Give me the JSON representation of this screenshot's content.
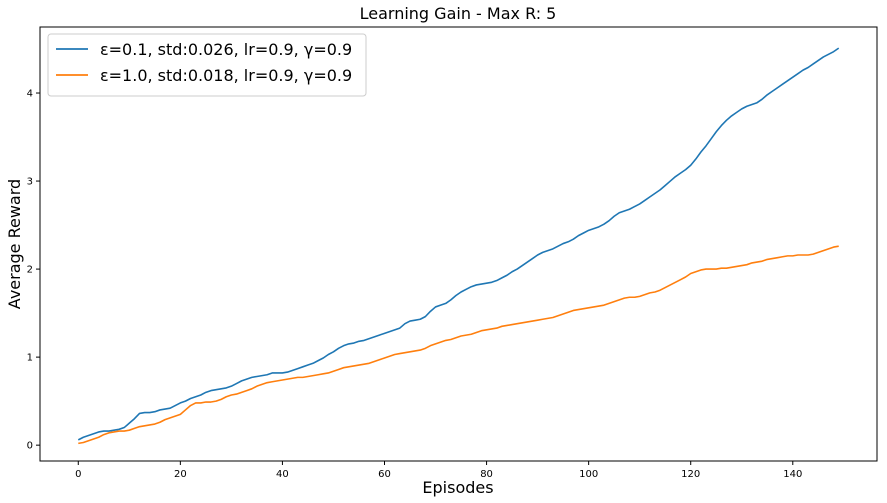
{
  "chart_data": {
    "type": "line",
    "title": "Learning Gain - Max R: 5",
    "xlabel": "Episodes",
    "ylabel": "Average Reward",
    "xlim": [
      -7.5,
      156.5
    ],
    "ylim": [
      -0.18,
      4.75
    ],
    "x_ticks": [
      0,
      20,
      40,
      60,
      80,
      100,
      120,
      140
    ],
    "y_ticks": [
      0,
      1,
      2,
      3,
      4
    ],
    "grid": false,
    "legend_position": "top-left",
    "series": [
      {
        "name": "ε=0.1, std:0.026, lr=0.9, γ=0.9",
        "color": "#1f77b4",
        "points": [
          [
            0,
            0.06
          ],
          [
            1,
            0.09
          ],
          [
            2,
            0.11
          ],
          [
            3,
            0.13
          ],
          [
            4,
            0.15
          ],
          [
            5,
            0.16
          ],
          [
            6,
            0.16
          ],
          [
            7,
            0.17
          ],
          [
            8,
            0.18
          ],
          [
            9,
            0.2
          ],
          [
            10,
            0.25
          ],
          [
            11,
            0.3
          ],
          [
            12,
            0.36
          ],
          [
            13,
            0.37
          ],
          [
            14,
            0.37
          ],
          [
            15,
            0.38
          ],
          [
            16,
            0.4
          ],
          [
            17,
            0.41
          ],
          [
            18,
            0.42
          ],
          [
            19,
            0.45
          ],
          [
            20,
            0.48
          ],
          [
            21,
            0.5
          ],
          [
            22,
            0.53
          ],
          [
            23,
            0.55
          ],
          [
            24,
            0.57
          ],
          [
            25,
            0.6
          ],
          [
            26,
            0.62
          ],
          [
            27,
            0.63
          ],
          [
            28,
            0.64
          ],
          [
            29,
            0.65
          ],
          [
            30,
            0.67
          ],
          [
            31,
            0.7
          ],
          [
            32,
            0.73
          ],
          [
            33,
            0.75
          ],
          [
            34,
            0.77
          ],
          [
            35,
            0.78
          ],
          [
            36,
            0.79
          ],
          [
            37,
            0.8
          ],
          [
            38,
            0.82
          ],
          [
            39,
            0.82
          ],
          [
            40,
            0.82
          ],
          [
            41,
            0.83
          ],
          [
            42,
            0.85
          ],
          [
            43,
            0.87
          ],
          [
            44,
            0.89
          ],
          [
            45,
            0.91
          ],
          [
            46,
            0.93
          ],
          [
            47,
            0.96
          ],
          [
            48,
            0.99
          ],
          [
            49,
            1.03
          ],
          [
            50,
            1.06
          ],
          [
            51,
            1.1
          ],
          [
            52,
            1.13
          ],
          [
            53,
            1.15
          ],
          [
            54,
            1.16
          ],
          [
            55,
            1.18
          ],
          [
            56,
            1.19
          ],
          [
            57,
            1.21
          ],
          [
            58,
            1.23
          ],
          [
            59,
            1.25
          ],
          [
            60,
            1.27
          ],
          [
            61,
            1.29
          ],
          [
            62,
            1.31
          ],
          [
            63,
            1.33
          ],
          [
            64,
            1.38
          ],
          [
            65,
            1.41
          ],
          [
            66,
            1.42
          ],
          [
            67,
            1.43
          ],
          [
            68,
            1.46
          ],
          [
            69,
            1.52
          ],
          [
            70,
            1.57
          ],
          [
            71,
            1.59
          ],
          [
            72,
            1.61
          ],
          [
            73,
            1.65
          ],
          [
            74,
            1.7
          ],
          [
            75,
            1.74
          ],
          [
            76,
            1.77
          ],
          [
            77,
            1.8
          ],
          [
            78,
            1.82
          ],
          [
            79,
            1.83
          ],
          [
            80,
            1.84
          ],
          [
            81,
            1.85
          ],
          [
            82,
            1.87
          ],
          [
            83,
            1.9
          ],
          [
            84,
            1.93
          ],
          [
            85,
            1.97
          ],
          [
            86,
            2.0
          ],
          [
            87,
            2.04
          ],
          [
            88,
            2.08
          ],
          [
            89,
            2.12
          ],
          [
            90,
            2.16
          ],
          [
            91,
            2.19
          ],
          [
            92,
            2.21
          ],
          [
            93,
            2.23
          ],
          [
            94,
            2.26
          ],
          [
            95,
            2.29
          ],
          [
            96,
            2.31
          ],
          [
            97,
            2.34
          ],
          [
            98,
            2.38
          ],
          [
            99,
            2.41
          ],
          [
            100,
            2.44
          ],
          [
            101,
            2.46
          ],
          [
            102,
            2.48
          ],
          [
            103,
            2.51
          ],
          [
            104,
            2.55
          ],
          [
            105,
            2.6
          ],
          [
            106,
            2.64
          ],
          [
            107,
            2.66
          ],
          [
            108,
            2.68
          ],
          [
            109,
            2.71
          ],
          [
            110,
            2.74
          ],
          [
            111,
            2.78
          ],
          [
            112,
            2.82
          ],
          [
            113,
            2.86
          ],
          [
            114,
            2.9
          ],
          [
            115,
            2.95
          ],
          [
            116,
            3.0
          ],
          [
            117,
            3.05
          ],
          [
            118,
            3.09
          ],
          [
            119,
            3.13
          ],
          [
            120,
            3.18
          ],
          [
            121,
            3.25
          ],
          [
            122,
            3.33
          ],
          [
            123,
            3.4
          ],
          [
            124,
            3.48
          ],
          [
            125,
            3.56
          ],
          [
            126,
            3.63
          ],
          [
            127,
            3.69
          ],
          [
            128,
            3.74
          ],
          [
            129,
            3.78
          ],
          [
            130,
            3.82
          ],
          [
            131,
            3.85
          ],
          [
            132,
            3.87
          ],
          [
            133,
            3.89
          ],
          [
            134,
            3.93
          ],
          [
            135,
            3.98
          ],
          [
            136,
            4.02
          ],
          [
            137,
            4.06
          ],
          [
            138,
            4.1
          ],
          [
            139,
            4.14
          ],
          [
            140,
            4.18
          ],
          [
            141,
            4.22
          ],
          [
            142,
            4.26
          ],
          [
            143,
            4.29
          ],
          [
            144,
            4.33
          ],
          [
            145,
            4.37
          ],
          [
            146,
            4.41
          ],
          [
            147,
            4.44
          ],
          [
            148,
            4.47
          ],
          [
            149,
            4.51
          ]
        ]
      },
      {
        "name": "ε=1.0, std:0.018, lr=0.9, γ=0.9",
        "color": "#ff7f0e",
        "points": [
          [
            0,
            0.02
          ],
          [
            1,
            0.03
          ],
          [
            2,
            0.05
          ],
          [
            3,
            0.07
          ],
          [
            4,
            0.09
          ],
          [
            5,
            0.12
          ],
          [
            6,
            0.14
          ],
          [
            7,
            0.15
          ],
          [
            8,
            0.16
          ],
          [
            9,
            0.16
          ],
          [
            10,
            0.17
          ],
          [
            11,
            0.19
          ],
          [
            12,
            0.21
          ],
          [
            13,
            0.22
          ],
          [
            14,
            0.23
          ],
          [
            15,
            0.24
          ],
          [
            16,
            0.26
          ],
          [
            17,
            0.29
          ],
          [
            18,
            0.31
          ],
          [
            19,
            0.33
          ],
          [
            20,
            0.35
          ],
          [
            21,
            0.4
          ],
          [
            22,
            0.45
          ],
          [
            23,
            0.48
          ],
          [
            24,
            0.48
          ],
          [
            25,
            0.49
          ],
          [
            26,
            0.49
          ],
          [
            27,
            0.5
          ],
          [
            28,
            0.52
          ],
          [
            29,
            0.55
          ],
          [
            30,
            0.57
          ],
          [
            31,
            0.58
          ],
          [
            32,
            0.6
          ],
          [
            33,
            0.62
          ],
          [
            34,
            0.64
          ],
          [
            35,
            0.67
          ],
          [
            36,
            0.69
          ],
          [
            37,
            0.71
          ],
          [
            38,
            0.72
          ],
          [
            39,
            0.73
          ],
          [
            40,
            0.74
          ],
          [
            41,
            0.75
          ],
          [
            42,
            0.76
          ],
          [
            43,
            0.77
          ],
          [
            44,
            0.77
          ],
          [
            45,
            0.78
          ],
          [
            46,
            0.79
          ],
          [
            47,
            0.8
          ],
          [
            48,
            0.81
          ],
          [
            49,
            0.82
          ],
          [
            50,
            0.84
          ],
          [
            51,
            0.86
          ],
          [
            52,
            0.88
          ],
          [
            53,
            0.89
          ],
          [
            54,
            0.9
          ],
          [
            55,
            0.91
          ],
          [
            56,
            0.92
          ],
          [
            57,
            0.93
          ],
          [
            58,
            0.95
          ],
          [
            59,
            0.97
          ],
          [
            60,
            0.99
          ],
          [
            61,
            1.01
          ],
          [
            62,
            1.03
          ],
          [
            63,
            1.04
          ],
          [
            64,
            1.05
          ],
          [
            65,
            1.06
          ],
          [
            66,
            1.07
          ],
          [
            67,
            1.08
          ],
          [
            68,
            1.1
          ],
          [
            69,
            1.13
          ],
          [
            70,
            1.15
          ],
          [
            71,
            1.17
          ],
          [
            72,
            1.19
          ],
          [
            73,
            1.2
          ],
          [
            74,
            1.22
          ],
          [
            75,
            1.24
          ],
          [
            76,
            1.25
          ],
          [
            77,
            1.26
          ],
          [
            78,
            1.28
          ],
          [
            79,
            1.3
          ],
          [
            80,
            1.31
          ],
          [
            81,
            1.32
          ],
          [
            82,
            1.33
          ],
          [
            83,
            1.35
          ],
          [
            84,
            1.36
          ],
          [
            85,
            1.37
          ],
          [
            86,
            1.38
          ],
          [
            87,
            1.39
          ],
          [
            88,
            1.4
          ],
          [
            89,
            1.41
          ],
          [
            90,
            1.42
          ],
          [
            91,
            1.43
          ],
          [
            92,
            1.44
          ],
          [
            93,
            1.45
          ],
          [
            94,
            1.47
          ],
          [
            95,
            1.49
          ],
          [
            96,
            1.51
          ],
          [
            97,
            1.53
          ],
          [
            98,
            1.54
          ],
          [
            99,
            1.55
          ],
          [
            100,
            1.56
          ],
          [
            101,
            1.57
          ],
          [
            102,
            1.58
          ],
          [
            103,
            1.59
          ],
          [
            104,
            1.61
          ],
          [
            105,
            1.63
          ],
          [
            106,
            1.65
          ],
          [
            107,
            1.67
          ],
          [
            108,
            1.68
          ],
          [
            109,
            1.68
          ],
          [
            110,
            1.69
          ],
          [
            111,
            1.71
          ],
          [
            112,
            1.73
          ],
          [
            113,
            1.74
          ],
          [
            114,
            1.76
          ],
          [
            115,
            1.79
          ],
          [
            116,
            1.82
          ],
          [
            117,
            1.85
          ],
          [
            118,
            1.88
          ],
          [
            119,
            1.91
          ],
          [
            120,
            1.95
          ],
          [
            121,
            1.97
          ],
          [
            122,
            1.99
          ],
          [
            123,
            2.0
          ],
          [
            124,
            2.0
          ],
          [
            125,
            2.0
          ],
          [
            126,
            2.01
          ],
          [
            127,
            2.01
          ],
          [
            128,
            2.02
          ],
          [
            129,
            2.03
          ],
          [
            130,
            2.04
          ],
          [
            131,
            2.05
          ],
          [
            132,
            2.07
          ],
          [
            133,
            2.08
          ],
          [
            134,
            2.09
          ],
          [
            135,
            2.11
          ],
          [
            136,
            2.12
          ],
          [
            137,
            2.13
          ],
          [
            138,
            2.14
          ],
          [
            139,
            2.15
          ],
          [
            140,
            2.15
          ],
          [
            141,
            2.16
          ],
          [
            142,
            2.16
          ],
          [
            143,
            2.16
          ],
          [
            144,
            2.17
          ],
          [
            145,
            2.19
          ],
          [
            146,
            2.21
          ],
          [
            147,
            2.23
          ],
          [
            148,
            2.25
          ],
          [
            149,
            2.26
          ]
        ]
      }
    ]
  }
}
